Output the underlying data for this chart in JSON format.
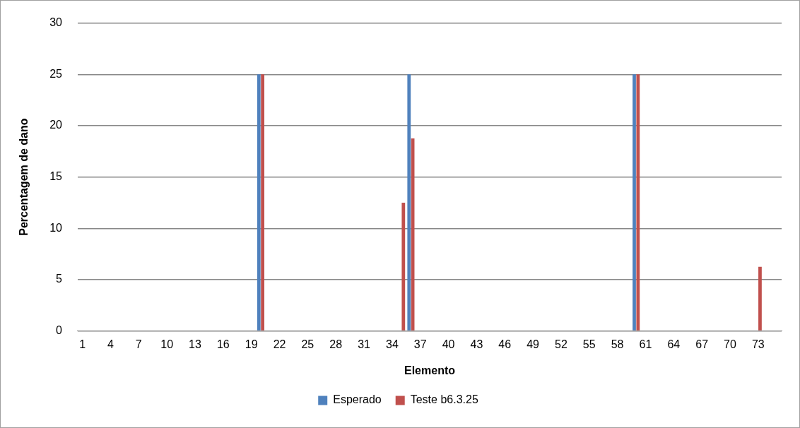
{
  "chart_data": {
    "type": "bar",
    "xlabel": "Elemento",
    "ylabel": "Percentagem de dano",
    "categories": [
      "1",
      null,
      null,
      "4",
      null,
      null,
      "7",
      null,
      null,
      "10",
      null,
      null,
      "13",
      null,
      null,
      "16",
      null,
      null,
      "19",
      null,
      null,
      "22",
      null,
      null,
      "25",
      null,
      null,
      "28",
      null,
      null,
      "31",
      null,
      null,
      "34",
      null,
      null,
      "37",
      null,
      null,
      "40",
      null,
      null,
      "43",
      null,
      null,
      "46",
      null,
      null,
      "49",
      null,
      null,
      "52",
      null,
      null,
      "55",
      null,
      null,
      "58",
      null,
      null,
      "61",
      null,
      null,
      "64",
      null,
      null,
      "67",
      null,
      null,
      "70",
      null,
      null,
      "73",
      null,
      null
    ],
    "series": [
      {
        "name": "Esperado",
        "color": "#4f81bd",
        "values": [
          0,
          0,
          0,
          0,
          0,
          0,
          0,
          0,
          0,
          0,
          0,
          0,
          0,
          0,
          0,
          0,
          0,
          0,
          0,
          25,
          0,
          0,
          0,
          0,
          0,
          0,
          0,
          0,
          0,
          0,
          0,
          0,
          0,
          0,
          0,
          25,
          0,
          0,
          0,
          0,
          0,
          0,
          0,
          0,
          0,
          0,
          0,
          0,
          0,
          0,
          0,
          0,
          0,
          0,
          0,
          0,
          0,
          0,
          0,
          25,
          0,
          0,
          0,
          0,
          0,
          0,
          0,
          0,
          0,
          0,
          0,
          0,
          0,
          0,
          0
        ]
      },
      {
        "name": "Teste b6.3.25",
        "color": "#c0504d",
        "values": [
          0,
          0,
          0,
          0,
          0,
          0,
          0,
          0,
          0,
          0,
          0,
          0,
          0,
          0,
          0,
          0,
          0,
          0,
          0,
          25,
          0,
          0,
          0,
          0,
          0,
          0,
          0,
          0,
          0,
          0,
          0,
          0,
          0,
          0,
          12.5,
          18.75,
          0,
          0,
          0,
          0,
          0,
          0,
          0,
          0,
          0,
          0,
          0,
          0,
          0,
          0,
          0,
          0,
          0,
          0,
          0,
          0,
          0,
          0,
          0,
          25,
          0,
          0,
          0,
          0,
          0,
          0,
          0,
          0,
          0,
          0,
          0,
          0,
          6.25,
          0,
          0
        ]
      }
    ],
    "ylim": [
      0,
      30
    ],
    "yticks": [
      0,
      5,
      10,
      15,
      20,
      25,
      30
    ],
    "grid": "y",
    "legend": "bottom"
  }
}
